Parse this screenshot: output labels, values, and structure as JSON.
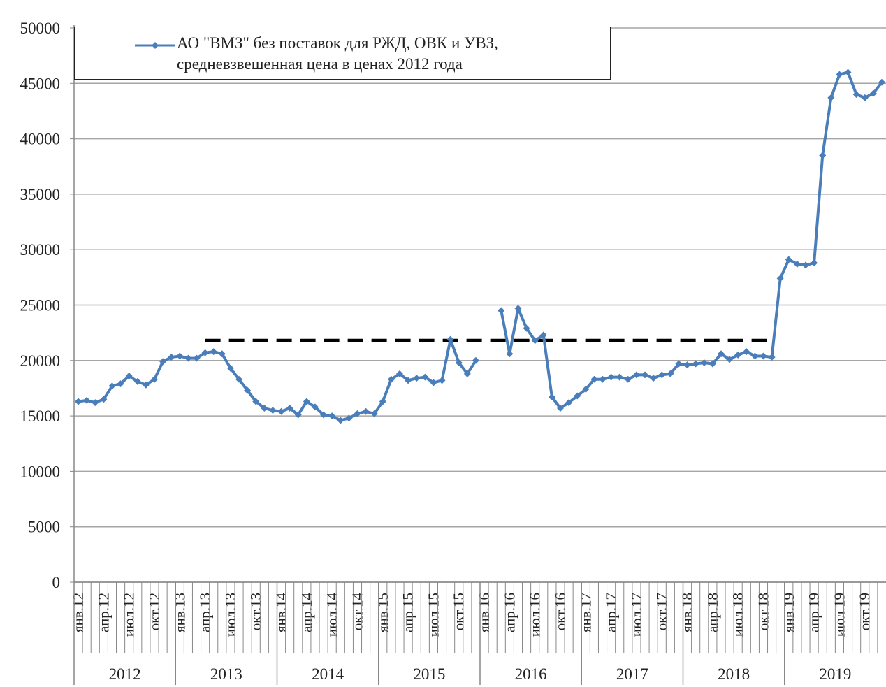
{
  "chart_data": {
    "type": "line",
    "categories": [
      "янв.12",
      null,
      null,
      "апр.12",
      null,
      null,
      "июл.12",
      null,
      null,
      "окт.12",
      null,
      null,
      "янв.13",
      null,
      null,
      "апр.13",
      null,
      null,
      "июл.13",
      null,
      null,
      "окт.13",
      null,
      null,
      "янв.14",
      null,
      null,
      "апр.14",
      null,
      null,
      "июл.14",
      null,
      null,
      "окт.14",
      null,
      null,
      "янв.15",
      null,
      null,
      "апр.15",
      null,
      null,
      "июл.15",
      null,
      null,
      "окт.15",
      null,
      null,
      "янв.16",
      null,
      null,
      "апр.16",
      null,
      null,
      "июл.16",
      null,
      null,
      "окт.16",
      null,
      null,
      "янв.17",
      null,
      null,
      "апр.17",
      null,
      null,
      "июл.17",
      null,
      null,
      "окт.17",
      null,
      null,
      "янв.18",
      null,
      null,
      "апр.18",
      null,
      null,
      "июл.18",
      null,
      null,
      "окт.18",
      null,
      null,
      "янв.19",
      null,
      null,
      "апр.19",
      null,
      null,
      "июл.19",
      null,
      null,
      "окт.19",
      null,
      null
    ],
    "year_groups": [
      "2012",
      "2013",
      "2014",
      "2015",
      "2016",
      "2017",
      "2018",
      "2019"
    ],
    "series": [
      {
        "name": "АО \"ВМЗ\" без поставок для РЖД, ОВК и УВЗ, средневзвешенная цена в ценах 2012 года",
        "color": "#4a7ebb",
        "values": [
          16300,
          16400,
          16200,
          16500,
          17700,
          17900,
          18600,
          18100,
          17800,
          18300,
          19900,
          20300,
          20400,
          20200,
          20200,
          20700,
          20800,
          20600,
          19300,
          18300,
          17300,
          16300,
          15700,
          15500,
          15400,
          15700,
          15100,
          16300,
          15800,
          15100,
          15000,
          14600,
          14800,
          15200,
          15400,
          15200,
          16300,
          18300,
          18800,
          18200,
          18400,
          18500,
          18000,
          18200,
          21900,
          19800,
          18800,
          20000,
          null,
          null,
          24500,
          20600,
          24700,
          22900,
          21800,
          22300,
          16700,
          15700,
          16200,
          16800,
          17400,
          18300,
          18300,
          18500,
          18500,
          18300,
          18700,
          18700,
          18400,
          18700,
          18800,
          19700,
          19600,
          19700,
          19800,
          19700,
          20600,
          20100,
          20500,
          20800,
          20400,
          20400,
          20300,
          27400,
          29100,
          28700,
          28600,
          28800,
          38500,
          43700,
          45800,
          46000,
          44000,
          43700,
          44100,
          45100
        ]
      }
    ],
    "reference_line": {
      "value": 21800,
      "start": "апр.13",
      "end": "окт.18",
      "color": "#000000"
    },
    "ylim": [
      0,
      50000
    ],
    "yticks": [
      0,
      5000,
      10000,
      15000,
      20000,
      25000,
      30000,
      35000,
      40000,
      45000,
      50000
    ],
    "grid": true
  }
}
